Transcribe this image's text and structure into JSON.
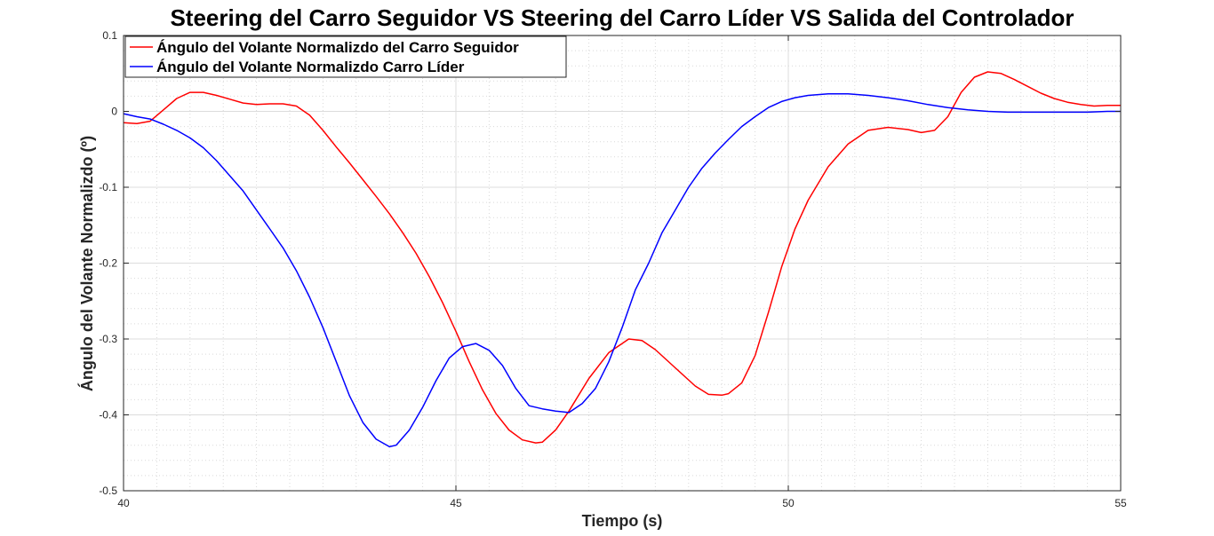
{
  "chart_data": {
    "type": "line",
    "title": "Steering del Carro Seguidor  VS Steering del Carro Líder VS Salida del Controlador",
    "xlabel": "Tiempo (s)",
    "ylabel": "Ángulo del Volante Normalizdo (º)",
    "xlim": [
      40,
      55
    ],
    "ylim": [
      -0.5,
      0.1
    ],
    "xticks": [
      40,
      45,
      50,
      55
    ],
    "xtick_labels": [
      "40",
      "45",
      "50",
      "55"
    ],
    "yticks": [
      0.1,
      0,
      -0.1,
      -0.2,
      -0.3,
      -0.4,
      -0.5
    ],
    "ytick_labels": [
      "0.1",
      "0",
      "-0.1",
      "-0.2",
      "-0.3",
      "-0.4",
      "-0.5"
    ],
    "grid": true,
    "minor_grid": true,
    "legend_position": "top-left",
    "series": [
      {
        "name": "Ángulo del Volante Normalizdo del Carro Seguidor",
        "color": "#ff0000",
        "x": [
          40,
          40.2,
          40.4,
          40.6,
          40.8,
          41,
          41.2,
          41.4,
          41.6,
          41.8,
          42,
          42.2,
          42.4,
          42.6,
          42.8,
          43,
          43.2,
          43.4,
          43.6,
          43.8,
          44,
          44.2,
          44.4,
          44.6,
          44.8,
          45,
          45.2,
          45.4,
          45.6,
          45.8,
          46,
          46.2,
          46.3,
          46.5,
          46.7,
          47,
          47.3,
          47.6,
          47.8,
          48,
          48.3,
          48.6,
          48.8,
          49,
          49.1,
          49.3,
          49.5,
          49.7,
          49.9,
          50.1,
          50.3,
          50.6,
          50.9,
          51.2,
          51.5,
          51.8,
          52,
          52.2,
          52.4,
          52.6,
          52.8,
          53,
          53.2,
          53.4,
          53.6,
          53.8,
          54,
          54.2,
          54.4,
          54.6,
          54.8,
          55
        ],
        "values": [
          -0.015,
          -0.016,
          -0.013,
          0.002,
          0.017,
          0.025,
          0.025,
          0.021,
          0.016,
          0.011,
          0.009,
          0.01,
          0.01,
          0.007,
          -0.005,
          -0.025,
          -0.047,
          -0.068,
          -0.09,
          -0.112,
          -0.135,
          -0.16,
          -0.187,
          -0.218,
          -0.252,
          -0.29,
          -0.33,
          -0.367,
          -0.398,
          -0.42,
          -0.433,
          -0.437,
          -0.436,
          -0.42,
          -0.395,
          -0.352,
          -0.318,
          -0.3,
          -0.302,
          -0.314,
          -0.338,
          -0.362,
          -0.373,
          -0.374,
          -0.372,
          -0.358,
          -0.322,
          -0.265,
          -0.205,
          -0.155,
          -0.117,
          -0.073,
          -0.043,
          -0.025,
          -0.021,
          -0.024,
          -0.028,
          -0.025,
          -0.007,
          0.025,
          0.045,
          0.052,
          0.05,
          0.042,
          0.033,
          0.024,
          0.017,
          0.012,
          0.009,
          0.007,
          0.008,
          0.008
        ]
      },
      {
        "name": "Ángulo del Volante Normalizdo Carro Líder",
        "color": "#0000ff",
        "x": [
          40,
          40.2,
          40.4,
          40.6,
          40.8,
          41,
          41.2,
          41.4,
          41.6,
          41.8,
          42,
          42.2,
          42.4,
          42.6,
          42.8,
          43,
          43.2,
          43.4,
          43.6,
          43.8,
          44,
          44.1,
          44.3,
          44.5,
          44.7,
          44.9,
          45.1,
          45.3,
          45.5,
          45.7,
          45.9,
          46.1,
          46.3,
          46.5,
          46.7,
          46.9,
          47.1,
          47.3,
          47.5,
          47.7,
          47.9,
          48.1,
          48.3,
          48.5,
          48.7,
          48.9,
          49.1,
          49.3,
          49.5,
          49.7,
          49.9,
          50.1,
          50.3,
          50.6,
          50.9,
          51.2,
          51.5,
          51.8,
          52.1,
          52.4,
          52.7,
          53,
          53.3,
          53.6,
          53.9,
          54.2,
          54.5,
          54.8,
          55
        ],
        "values": [
          -0.003,
          -0.007,
          -0.01,
          -0.017,
          -0.025,
          -0.035,
          -0.048,
          -0.065,
          -0.085,
          -0.105,
          -0.13,
          -0.155,
          -0.18,
          -0.21,
          -0.245,
          -0.285,
          -0.33,
          -0.375,
          -0.41,
          -0.432,
          -0.442,
          -0.44,
          -0.42,
          -0.39,
          -0.355,
          -0.325,
          -0.31,
          -0.306,
          -0.315,
          -0.335,
          -0.365,
          -0.388,
          -0.392,
          -0.395,
          -0.397,
          -0.385,
          -0.365,
          -0.33,
          -0.285,
          -0.235,
          -0.2,
          -0.16,
          -0.13,
          -0.1,
          -0.075,
          -0.055,
          -0.037,
          -0.02,
          -0.007,
          0.005,
          0.013,
          0.018,
          0.021,
          0.023,
          0.023,
          0.021,
          0.018,
          0.014,
          0.009,
          0.005,
          0.002,
          0,
          -0.001,
          -0.001,
          -0.001,
          -0.001,
          -0.001,
          0,
          0
        ]
      }
    ]
  }
}
